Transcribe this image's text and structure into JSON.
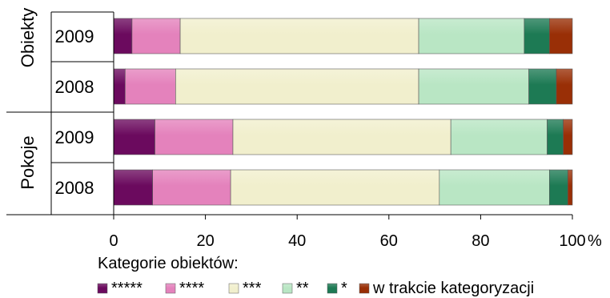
{
  "chart_data": {
    "type": "bar",
    "orientation": "horizontal",
    "stacked": "percent",
    "groups": [
      {
        "label": "Obiekty",
        "rows": [
          {
            "label": "2009",
            "values": [
              4,
              10.5,
              52,
              23,
              5.5,
              5
            ]
          },
          {
            "label": "2008",
            "values": [
              2.5,
              11,
              53,
              24,
              6,
              3.5
            ]
          }
        ]
      },
      {
        "label": "Pokoje",
        "rows": [
          {
            "label": "2009",
            "values": [
              9,
              17,
              47.5,
              21,
              3.5,
              2
            ]
          },
          {
            "label": "2008",
            "values": [
              8.5,
              17,
              45.5,
              24,
              4,
              1
            ]
          }
        ]
      }
    ],
    "series": [
      {
        "name": "*****",
        "color": "#6b0a5e"
      },
      {
        "name": "****",
        "color": "#e482bc"
      },
      {
        "name": "***",
        "color": "#f1efcd"
      },
      {
        "name": "**",
        "color": "#b9e6c4"
      },
      {
        "name": "*",
        "color": "#1d7a54"
      },
      {
        "name": "w trakcie kategoryzacji",
        "color": "#992f06"
      }
    ],
    "x_ticks": [
      "0",
      "20",
      "40",
      "60",
      "80",
      "100"
    ],
    "x_unit": "%",
    "xlim": [
      0,
      100
    ],
    "legend_title": "Kategorie obiektów:",
    "legend_position": "bottom",
    "grid": false
  }
}
